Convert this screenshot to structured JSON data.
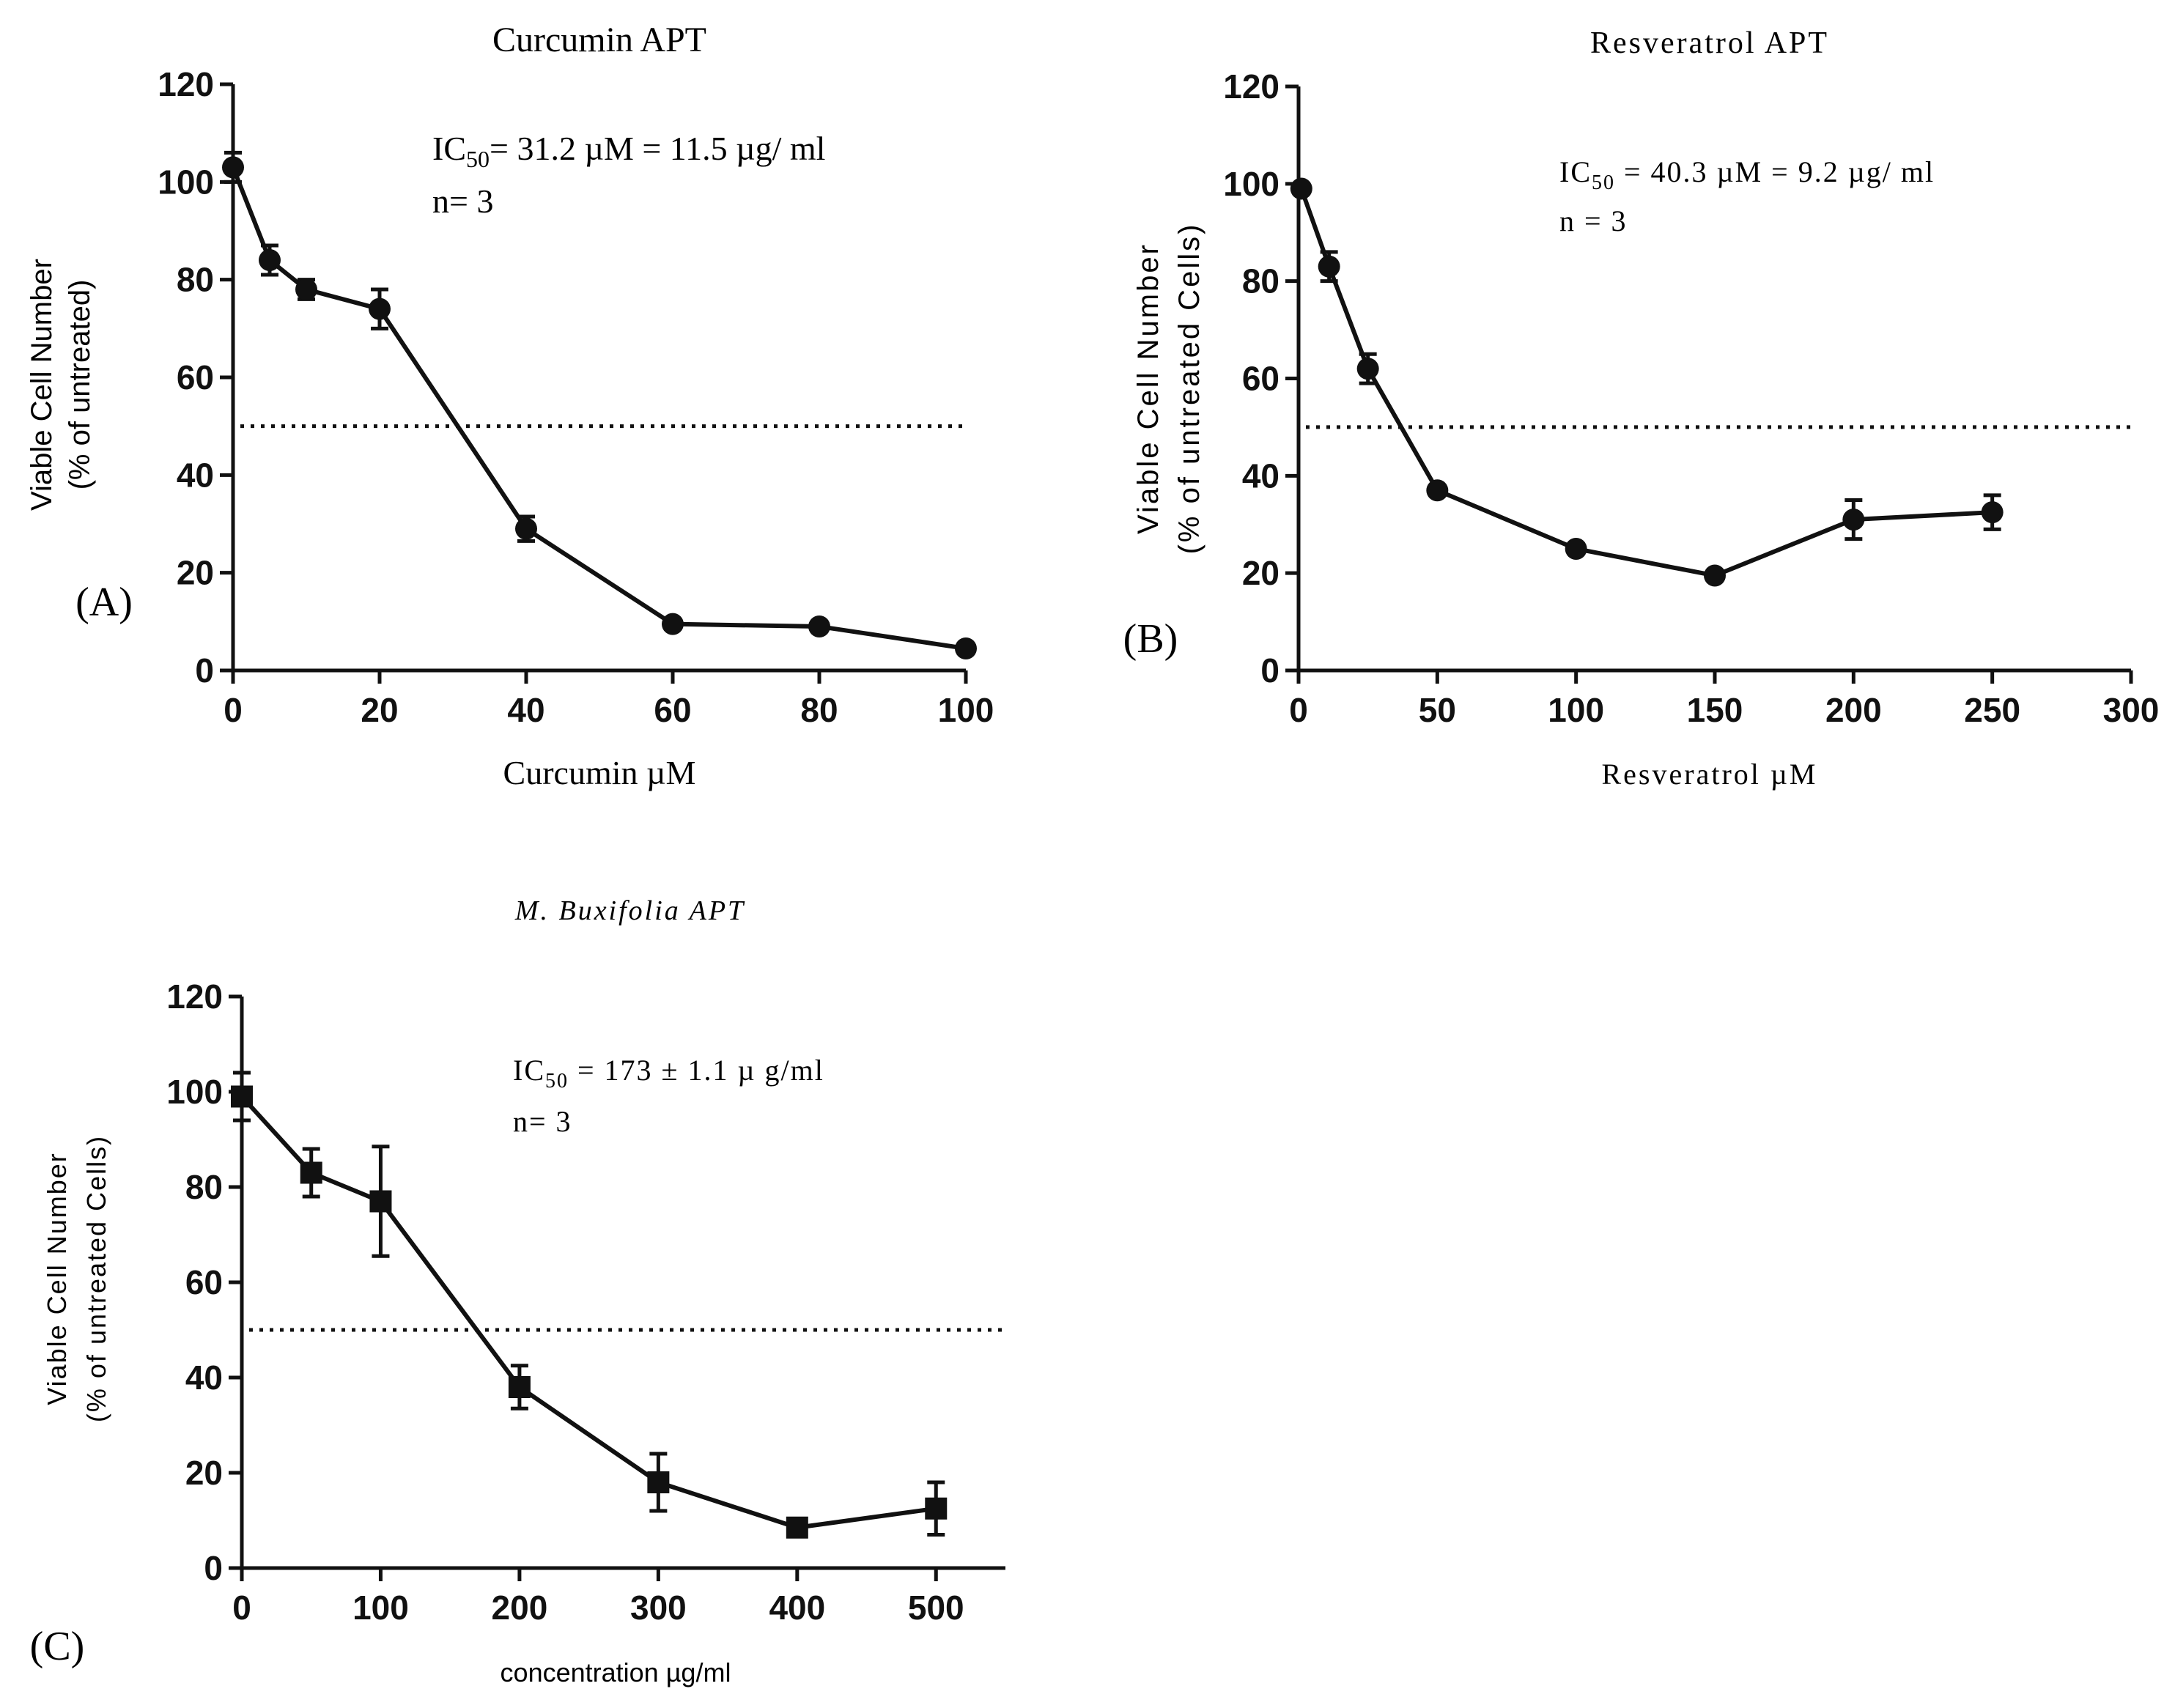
{
  "chart_data": [
    {
      "type": "line",
      "title": "Curcumin APT",
      "xlabel": "Curcumin µM",
      "ylabel_line1": "Viable Cell Number",
      "ylabel_line2": "(% of untreated)",
      "panel_label": "(A)",
      "annotation_ic50_prefix": "IC",
      "annotation_ic50_sub": "50",
      "annotation_ic50_rest": "= 31.2 µM =  11.5 µg/ ml",
      "annotation_n": "n= 3",
      "xlim": [
        0,
        100
      ],
      "ylim": [
        0,
        120
      ],
      "xticks": [
        0,
        20,
        40,
        60,
        80,
        100
      ],
      "yticks": [
        0,
        20,
        40,
        60,
        80,
        100,
        120
      ],
      "reference_line_y": 50,
      "marker": "circle",
      "x": [
        0,
        5,
        10,
        20,
        40,
        60,
        80,
        100
      ],
      "y": [
        103,
        84,
        78,
        74,
        29,
        9.5,
        9,
        4.5
      ],
      "err": [
        3,
        3,
        2,
        4,
        2.5,
        1,
        1,
        0.8
      ]
    },
    {
      "type": "line",
      "title": "Resveratrol APT",
      "xlabel": "Resveratrol µM",
      "ylabel_line1": "Viable Cell Number",
      "ylabel_line2": "(% of untreated Cells)",
      "panel_label": "(B)",
      "annotation_ic50_prefix": "IC",
      "annotation_ic50_sub": "50",
      "annotation_ic50_rest": " = 40.3  µM  = 9.2  µg/ ml",
      "annotation_n": "n  =  3",
      "xlim": [
        0,
        300
      ],
      "ylim": [
        0,
        120
      ],
      "xticks": [
        0,
        50,
        100,
        150,
        200,
        250,
        300
      ],
      "yticks": [
        0,
        20,
        40,
        60,
        80,
        100,
        120
      ],
      "reference_line_y": 50,
      "marker": "circle",
      "x": [
        1,
        11,
        25,
        50,
        100,
        150,
        200,
        250
      ],
      "y": [
        99,
        83,
        62,
        37,
        25,
        19.5,
        31,
        32.5
      ],
      "err": [
        1,
        3,
        3,
        1,
        1,
        1,
        4,
        3.5
      ]
    },
    {
      "type": "line",
      "title": "M. Buxifolia APT",
      "xlabel": "concentration µg/ml",
      "ylabel_line1": "Viable Cell Number",
      "ylabel_line2": "(% of untreated Cells)",
      "panel_label": "(C)",
      "annotation_ic50_prefix": "IC",
      "annotation_ic50_sub": "50",
      "annotation_ic50_rest": " = 173 ± 1.1  µ g/ml",
      "annotation_n": "n= 3",
      "xlim": [
        0,
        550
      ],
      "ylim": [
        0,
        120
      ],
      "xticks": [
        0,
        100,
        200,
        300,
        400,
        500
      ],
      "yticks": [
        0,
        20,
        40,
        60,
        80,
        100,
        120
      ],
      "reference_line_y": 50,
      "marker": "square",
      "x": [
        0,
        50,
        100,
        200,
        300,
        400,
        500
      ],
      "y": [
        99,
        83,
        77,
        38,
        18,
        8.5,
        12.5
      ],
      "err": [
        5,
        5,
        11.5,
        4.5,
        6,
        1.5,
        5.5
      ]
    }
  ]
}
